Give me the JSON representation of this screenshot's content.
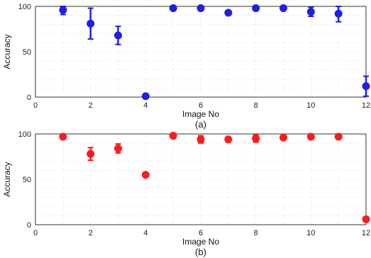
{
  "chart_data": [
    {
      "type": "scatter",
      "caption": "(a)",
      "xlabel": "Image No",
      "ylabel": "Accuracy",
      "xlim": [
        0,
        12
      ],
      "ylim": [
        0,
        100
      ],
      "xticks": [
        0,
        2,
        4,
        6,
        8,
        10,
        12
      ],
      "yticks": [
        0,
        50,
        100
      ],
      "grid": true,
      "error_bars": true,
      "color": "#1f1fe6",
      "series": [
        {
          "x": [
            1,
            2,
            3,
            4,
            5,
            6,
            7,
            8,
            9,
            10,
            11,
            12
          ],
          "y": [
            96,
            81,
            68,
            1,
            98,
            98,
            93,
            98,
            98,
            94,
            92,
            12
          ],
          "error": [
            5,
            17,
            10,
            0,
            0,
            0,
            0,
            0,
            0,
            5,
            9,
            11
          ]
        }
      ]
    },
    {
      "type": "scatter",
      "caption": "(b)",
      "xlabel": "Image No",
      "ylabel": "Accuracy",
      "xlim": [
        0,
        12
      ],
      "ylim": [
        0,
        100
      ],
      "xticks": [
        0,
        2,
        4,
        6,
        8,
        10,
        12
      ],
      "yticks": [
        0,
        50,
        100
      ],
      "grid": true,
      "error_bars": true,
      "color": "#ff1a1a",
      "series": [
        {
          "x": [
            1,
            2,
            3,
            4,
            5,
            6,
            7,
            8,
            9,
            10,
            11,
            12
          ],
          "y": [
            97,
            78,
            84,
            55,
            98,
            94,
            94,
            95,
            96,
            97,
            97,
            6
          ],
          "error": [
            0,
            7,
            5,
            0,
            0,
            4,
            0,
            4,
            0,
            0,
            0,
            0
          ]
        }
      ]
    }
  ]
}
